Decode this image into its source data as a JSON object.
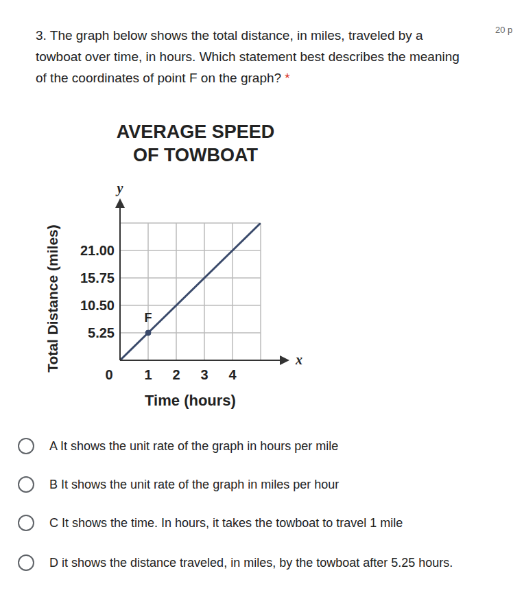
{
  "question": "3. The graph below shows the total distance, in miles, traveled by a towboat over time, in hours. Which statement best describes the meaning of the coordinates of point F on the graph?",
  "required_mark": "*",
  "points": "20 p",
  "options": [
    "A It shows the unit rate of the graph in hours per mile",
    "B It shows the unit rate of the graph in miles per hour",
    "C It shows the time. In hours, it takes the towboat to travel 1 mile",
    "D it shows the distance traveled, in miles, by the towboat after 5.25 hours."
  ],
  "chart_data": {
    "type": "line",
    "title": "AVERAGE SPEED OF TOWBOAT",
    "x_label": "Time (hours)",
    "y_label": "Total Distance (miles)",
    "x": [
      0,
      1,
      2,
      3,
      4,
      5
    ],
    "values": [
      0,
      5.25,
      10.5,
      15.75,
      21,
      26.25
    ],
    "color": "#3a4a6b",
    "xlim": [
      0,
      5
    ],
    "xticks": [
      0,
      1,
      2,
      3,
      4
    ],
    "ylim": [
      0,
      26.25
    ],
    "yticks": [
      5.25,
      {
        "value": 10.5,
        "label": "10.50"
      },
      15.75,
      {
        "value": 21,
        "label": "21.00"
      }
    ],
    "grid": true,
    "annotations": [
      {
        "text": "y"
      },
      {
        "text": "x"
      },
      {
        "text": "F",
        "x": 1,
        "y": 5.25
      }
    ]
  }
}
